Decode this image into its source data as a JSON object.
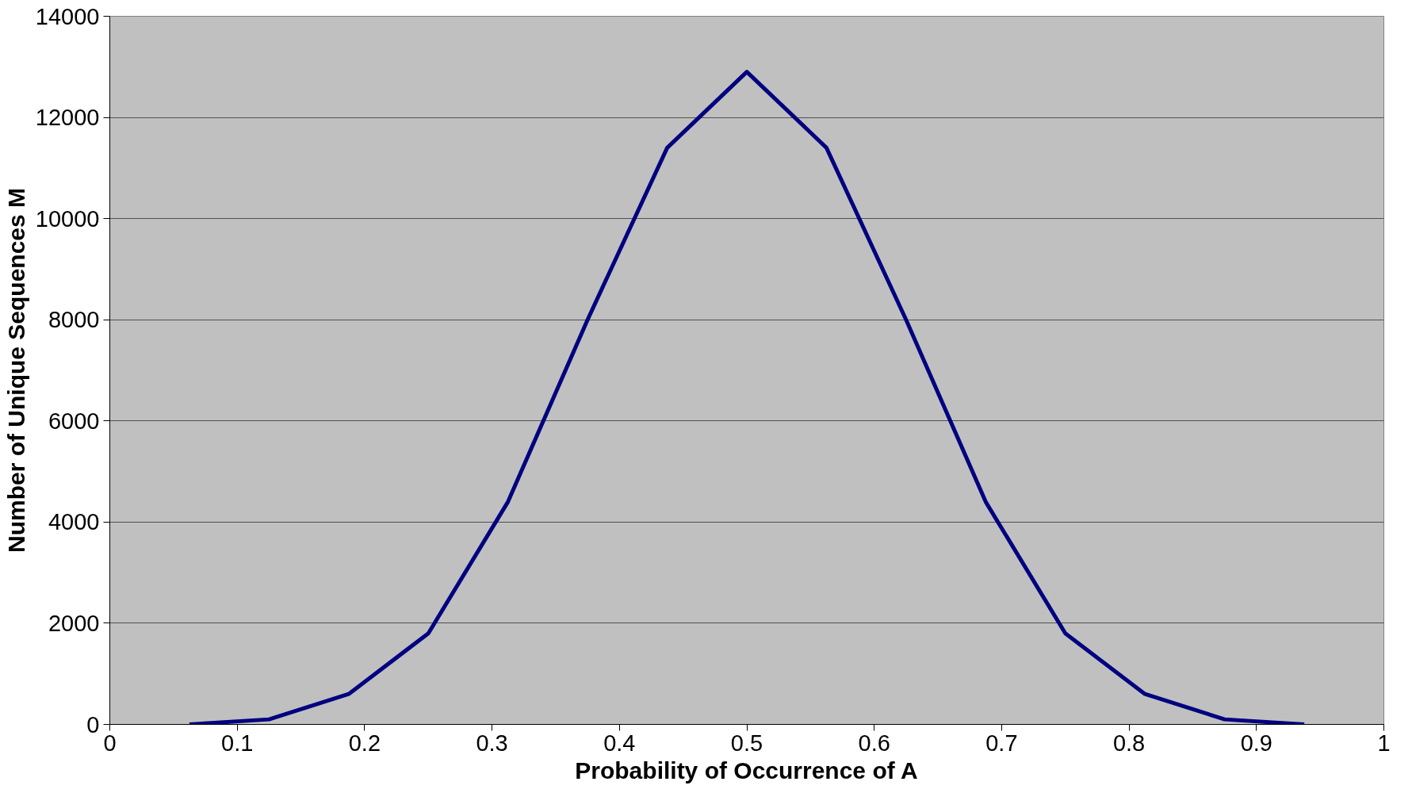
{
  "chart_data": {
    "type": "line",
    "xlabel": "Probability of Occurrence of A",
    "ylabel": "Number of Unique Sequences M",
    "x": [
      0.0625,
      0.125,
      0.1875,
      0.25,
      0.3125,
      0.375,
      0.4375,
      0.5,
      0.5625,
      0.625,
      0.6875,
      0.75,
      0.8125,
      0.875,
      0.9375
    ],
    "series": [
      {
        "color": "#000080",
        "values": [
          0,
          100,
          600,
          1800,
          4400,
          8000,
          11400,
          12900,
          11400,
          8000,
          4400,
          1800,
          600,
          100,
          0
        ]
      }
    ],
    "xlim": [
      0,
      1
    ],
    "xticks": [
      0,
      0.1,
      0.2,
      0.3,
      0.4,
      0.5,
      0.6,
      0.7,
      0.8,
      0.9,
      1
    ],
    "ylim": [
      0,
      14000
    ],
    "yticks": [
      0,
      2000,
      4000,
      6000,
      8000,
      10000,
      12000,
      14000
    ],
    "grid": "y",
    "marker": "none",
    "line_style": "solid"
  }
}
